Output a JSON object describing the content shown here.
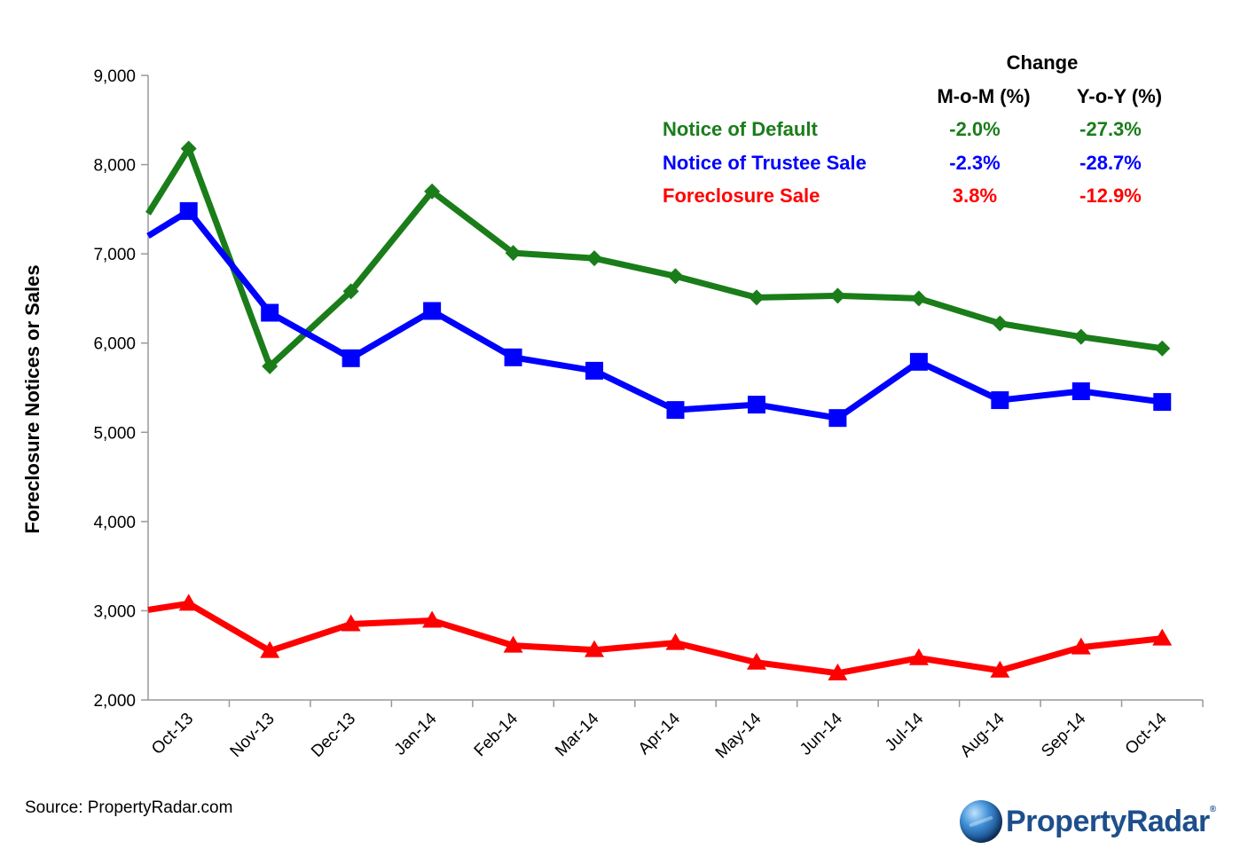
{
  "chart_data": {
    "type": "line",
    "title": "",
    "xlabel": "",
    "ylabel": "Foreclosure Notices or Sales",
    "ylim": [
      2000,
      9000
    ],
    "yticks": [
      2000,
      3000,
      4000,
      5000,
      6000,
      7000,
      8000,
      9000
    ],
    "ytick_labels": [
      "2,000",
      "3,000",
      "4,000",
      "5,000",
      "6,000",
      "7,000",
      "8,000",
      "9,000"
    ],
    "categories": [
      "Oct-13",
      "Nov-13",
      "Dec-13",
      "Jan-14",
      "Feb-14",
      "Mar-14",
      "Apr-14",
      "May-14",
      "Jun-14",
      "Jul-14",
      "Aug-14",
      "Sep-14",
      "Oct-14"
    ],
    "grid": false,
    "series": [
      {
        "name": "Notice of Default",
        "color": "#1a7d1a",
        "marker": "diamond",
        "lead_in": 7450,
        "values": [
          8180,
          5740,
          6580,
          7700,
          7010,
          6950,
          6750,
          6510,
          6530,
          6500,
          6220,
          6070,
          5940
        ]
      },
      {
        "name": "Notice of Trustee Sale",
        "color": "#0000ff",
        "marker": "square",
        "lead_in": 7200,
        "values": [
          7480,
          6340,
          5830,
          6360,
          5840,
          5690,
          5250,
          5310,
          5160,
          5790,
          5360,
          5460,
          5340
        ]
      },
      {
        "name": "Foreclosure Sale",
        "color": "#ff0000",
        "marker": "triangle",
        "lead_in": 3010,
        "values": [
          3080,
          2550,
          2850,
          2890,
          2610,
          2560,
          2640,
          2420,
          2300,
          2470,
          2330,
          2590,
          2690
        ]
      }
    ]
  },
  "change_table": {
    "header": "Change",
    "col_mom": "M-o-M (%)",
    "col_yoy": "Y-o-Y (%)",
    "rows": [
      {
        "label": "Notice of Default",
        "mom": "-2.0%",
        "yoy": "-27.3%",
        "color": "#1a7d1a"
      },
      {
        "label": "Notice of Trustee Sale",
        "mom": "-2.3%",
        "yoy": "-28.7%",
        "color": "#0000ff"
      },
      {
        "label": "Foreclosure Sale",
        "mom": "3.8%",
        "yoy": "-12.9%",
        "color": "#ff0000"
      }
    ]
  },
  "source": "Source: PropertyRadar.com",
  "logo": {
    "part1": "Property",
    "part2": "Radar",
    "mark": "®",
    "icon": "globe-icon"
  }
}
